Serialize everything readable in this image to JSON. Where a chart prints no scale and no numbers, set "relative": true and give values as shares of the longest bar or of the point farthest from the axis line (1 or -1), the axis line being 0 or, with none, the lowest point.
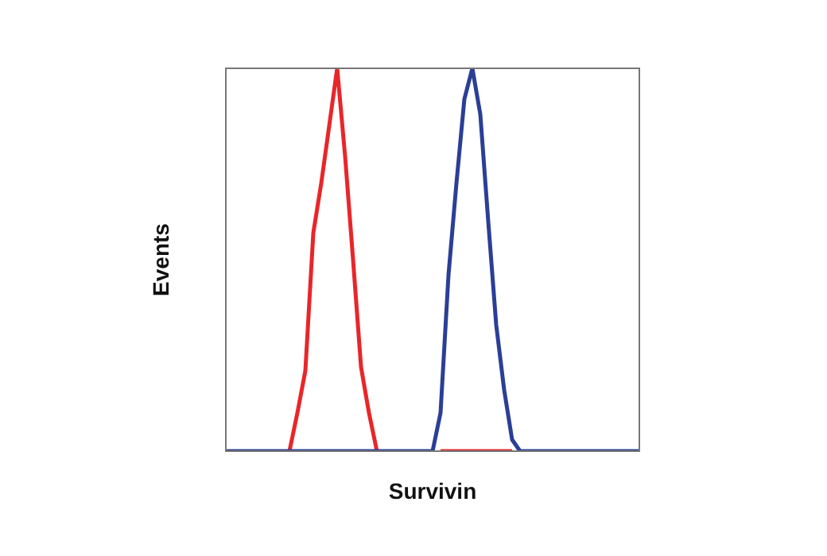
{
  "chart_data": {
    "type": "line",
    "xlabel": "Survivin",
    "ylabel": "Events",
    "relative": true,
    "grid": false,
    "legend": false,
    "marker": "none",
    "tick_labels": false,
    "categories": [
      null,
      null,
      null,
      null,
      null,
      null,
      null,
      null,
      null,
      null,
      null,
      null,
      null,
      null,
      null,
      null,
      null,
      null,
      null,
      null,
      null,
      null,
      null,
      null,
      null,
      null,
      null,
      null,
      null,
      null,
      null,
      null,
      null,
      null,
      null,
      null,
      null,
      null,
      null,
      null,
      null,
      null,
      null,
      null,
      null,
      null,
      null,
      null,
      null,
      null,
      null,
      null,
      null
    ],
    "series": [
      {
        "color": "#e8262a",
        "values": [
          null,
          null,
          null,
          null,
          null,
          null,
          null,
          null,
          0,
          0.1,
          0.21,
          0.57,
          0.7,
          0.85,
          1,
          0.77,
          0.5,
          0.22,
          0.1,
          0,
          null,
          null,
          null,
          null,
          null,
          null,
          null,
          0,
          0,
          0,
          0,
          0,
          0,
          0,
          0,
          0,
          0,
          null,
          null,
          null,
          null,
          null,
          null,
          null,
          null,
          null,
          null,
          null,
          null,
          null,
          null,
          null,
          null
        ]
      },
      {
        "color": "#2b3f96",
        "values": [
          0,
          0,
          0,
          0,
          0,
          0,
          0,
          0,
          0,
          0,
          0,
          0,
          0,
          0,
          0,
          0,
          0,
          0,
          0,
          0,
          0,
          0,
          0,
          0,
          0,
          0,
          0,
          0.1,
          0.46,
          0.7,
          0.92,
          1,
          0.88,
          0.6,
          0.33,
          0.16,
          0.03,
          0,
          0,
          0,
          0,
          0,
          0,
          0,
          0,
          0,
          0,
          0,
          0,
          0,
          0,
          0,
          0
        ]
      }
    ]
  }
}
